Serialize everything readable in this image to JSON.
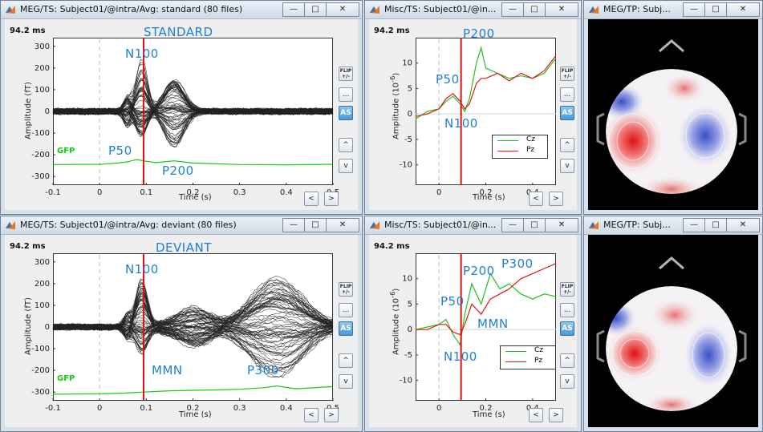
{
  "colors": {
    "accent": "#1e7fd6",
    "gfp": "#12cc12",
    "cz": "#22c022",
    "pz": "#e01818",
    "cursor": "#e01010"
  },
  "common": {
    "time_display": "94.2 ms",
    "xlabel": "Time (s)",
    "amp_ft_label": "Amplitude (fT)",
    "amp_misc_label": "Amplitude (10",
    "amp_misc_exp": "-6",
    "amp_misc_close": ")",
    "flip_label": "FLIP +/-",
    "more_label": "...",
    "as_label": "AS",
    "up_label": "^",
    "down_label": "v",
    "prev_label": "<",
    "next_label": ">",
    "min_label": "—",
    "max_label": "□",
    "close_label": "✕"
  },
  "windows": {
    "meg_std": {
      "title": "MEG/TS: Subject01/@intra/Avg: standard (80 files)",
      "condition": "STANDARD",
      "gfp_label": "GFP",
      "annotations": {
        "n100": "N100",
        "p50": "P50",
        "p200": "P200"
      }
    },
    "misc_std": {
      "title": "Misc/TS: Subject01/@in...",
      "annotations": {
        "p200": "P200",
        "p50": "P50",
        "n100": "N100"
      },
      "legend": [
        "Cz",
        "Pz"
      ]
    },
    "topo_std": {
      "title": "MEG/TP: Subj..."
    },
    "meg_dev": {
      "title": "MEG/TS: Subject01/@intra/Avg: deviant (80 files)",
      "condition": "DEVIANT",
      "gfp_label": "GFP",
      "annotations": {
        "n100": "N100",
        "mmn": "MMN",
        "p300": "P300"
      }
    },
    "misc_dev": {
      "title": "Misc/TS: Subject01/@in...",
      "annotations": {
        "p200": "P200",
        "p300": "P300",
        "p50": "P50",
        "mmn": "MMN",
        "n100": "N100"
      },
      "legend": [
        "Cz",
        "Pz"
      ]
    },
    "topo_dev": {
      "title": "MEG/TP: Subj..."
    }
  },
  "chart_data": [
    {
      "type": "line",
      "title": "STANDARD",
      "xlabel": "Time (s)",
      "ylabel": "Amplitude (fT)",
      "xlim": [
        -0.1,
        0.5
      ],
      "ylim": [
        -340,
        340
      ],
      "xticks": [
        "-0.1",
        "0",
        "0.1",
        "0.2",
        "0.3",
        "0.4",
        "0.5"
      ],
      "yticks": [
        "300",
        "200",
        "100",
        "0",
        "-100",
        "-200",
        "-300"
      ],
      "cursor_x": 0.0942,
      "series": [
        {
          "name": "GFP",
          "x": [
            -0.1,
            0,
            0.04,
            0.06,
            0.08,
            0.094,
            0.12,
            0.16,
            0.2,
            0.3,
            0.4,
            0.5
          ],
          "y": [
            -245,
            -244,
            -238,
            -232,
            -222,
            -228,
            -236,
            -228,
            -238,
            -245,
            -246,
            -244
          ]
        }
      ]
    },
    {
      "type": "line",
      "xlabel": "Time (s)",
      "ylabel": "Amplitude (10^-6)",
      "xlim": [
        -0.1,
        0.5
      ],
      "ylim": [
        -14,
        15
      ],
      "xticks": [
        "0",
        "0.2",
        "0.4"
      ],
      "yticks": [
        "10",
        "5",
        "0",
        "-5",
        "-10"
      ],
      "cursor_x": 0.0942,
      "series": [
        {
          "name": "Cz",
          "x": [
            -0.1,
            -0.05,
            0,
            0.03,
            0.06,
            0.09,
            0.11,
            0.13,
            0.16,
            0.18,
            0.2,
            0.25,
            0.3,
            0.35,
            0.4,
            0.45,
            0.5
          ],
          "y": [
            -1,
            0.5,
            1,
            2.5,
            3.5,
            2,
            0.5,
            3,
            10,
            13,
            9,
            8,
            7,
            7.5,
            7,
            8,
            11
          ]
        },
        {
          "name": "Pz",
          "x": [
            -0.1,
            -0.05,
            0,
            0.03,
            0.06,
            0.09,
            0.11,
            0.13,
            0.16,
            0.18,
            0.2,
            0.25,
            0.3,
            0.35,
            0.4,
            0.45,
            0.5
          ],
          "y": [
            -0.5,
            0,
            1,
            3,
            4,
            2.5,
            1,
            2,
            6,
            7,
            7,
            8,
            6.5,
            8,
            7,
            8.5,
            11.5
          ]
        }
      ]
    },
    {
      "type": "line",
      "title": "DEVIANT",
      "xlabel": "Time (s)",
      "ylabel": "Amplitude (fT)",
      "xlim": [
        -0.1,
        0.5
      ],
      "ylim": [
        -340,
        340
      ],
      "xticks": [
        "-0.1",
        "0",
        "0.1",
        "0.2",
        "0.3",
        "0.4",
        "0.5"
      ],
      "yticks": [
        "300",
        "200",
        "100",
        "0",
        "-100",
        "-200",
        "-300"
      ],
      "cursor_x": 0.0942,
      "series": [
        {
          "name": "GFP",
          "x": [
            -0.1,
            0,
            0.05,
            0.094,
            0.15,
            0.2,
            0.25,
            0.3,
            0.35,
            0.38,
            0.42,
            0.5
          ],
          "y": [
            -310,
            -308,
            -305,
            -300,
            -294,
            -292,
            -290,
            -287,
            -280,
            -272,
            -285,
            -275
          ]
        }
      ]
    },
    {
      "type": "line",
      "xlabel": "Time (s)",
      "ylabel": "Amplitude (10^-6)",
      "xlim": [
        -0.1,
        0.5
      ],
      "ylim": [
        -14,
        15
      ],
      "xticks": [
        "0",
        "0.2",
        "0.4"
      ],
      "yticks": [
        "10",
        "5",
        "0",
        "-5",
        "-10"
      ],
      "cursor_x": 0.0942,
      "series": [
        {
          "name": "Cz",
          "x": [
            -0.1,
            -0.05,
            0,
            0.03,
            0.06,
            0.09,
            0.11,
            0.14,
            0.18,
            0.22,
            0.26,
            0.3,
            0.35,
            0.4,
            0.45,
            0.5
          ],
          "y": [
            0,
            0.5,
            1,
            2,
            -1,
            -3,
            3,
            9,
            5,
            11,
            8,
            9,
            7,
            6,
            7,
            6.5
          ]
        },
        {
          "name": "Pz",
          "x": [
            -0.1,
            -0.05,
            0,
            0.03,
            0.06,
            0.09,
            0.11,
            0.14,
            0.18,
            0.22,
            0.26,
            0.3,
            0.35,
            0.4,
            0.45,
            0.5
          ],
          "y": [
            0,
            0,
            1,
            1,
            -0.5,
            -1,
            1,
            5,
            3,
            6,
            7,
            8,
            10,
            11,
            12,
            13
          ]
        }
      ]
    }
  ]
}
